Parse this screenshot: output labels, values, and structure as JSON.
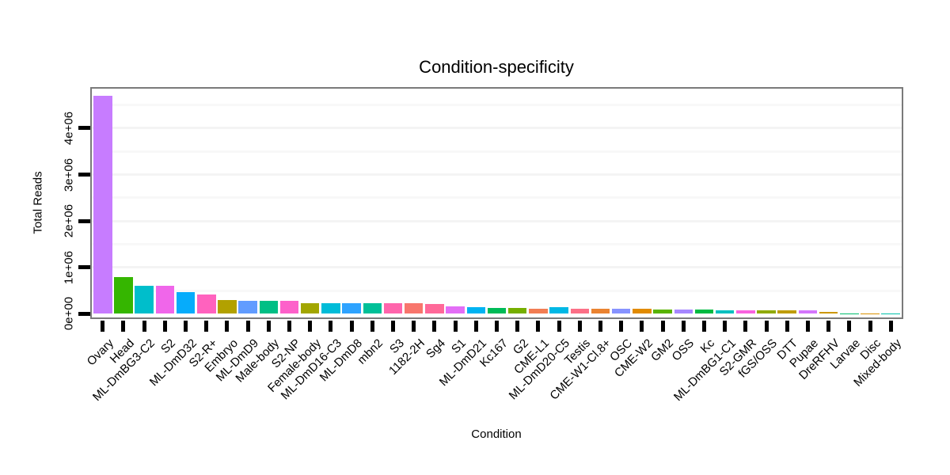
{
  "title": "Condition-specificity",
  "axes": {
    "x_label": "Condition",
    "y_label": "Total Reads"
  },
  "palette": {
    "panel_border": "#7a7a7a",
    "tick_color": "#000000",
    "grid_major": "#f4f4f4",
    "grid_minor": "#f8f8f8",
    "background": "#ffffff"
  },
  "chart_data": {
    "type": "bar",
    "title": "Condition-specificity",
    "xlabel": "Condition",
    "ylabel": "Total Reads",
    "ylim": [
      0,
      4900000
    ],
    "grid": "horizontal major+minor, very light gray, every 500000",
    "legend": "none",
    "y_ticks": [
      {
        "value": 0,
        "label": "0e+00"
      },
      {
        "value": 1000000,
        "label": "1e+06"
      },
      {
        "value": 2000000,
        "label": "2e+06"
      },
      {
        "value": 3000000,
        "label": "3e+06"
      },
      {
        "value": 4000000,
        "label": "4e+06"
      }
    ],
    "categories": [
      "Ovary",
      "Head",
      "ML-DmBG3-C2",
      "S2",
      "ML-DmD32",
      "S2-R+",
      "Embryo",
      "ML-DmD9",
      "Male-body",
      "S2-NP",
      "Female-body",
      "ML-DmD16-C3",
      "ML-DmD8",
      "mbn2",
      "S3",
      "1182-2H",
      "Sg4",
      "S1",
      "ML-DmD21",
      "Kc167",
      "G2",
      "CME-L1",
      "ML-DmD20-C5",
      "Testis",
      "CME-W1-Cl.8+",
      "OSC",
      "CME-W2",
      "GM2",
      "OSS",
      "Kc",
      "ML-DmBG1-C1",
      "S2-GMR",
      "fGS/OSS",
      "DTT",
      "Pupae",
      "DreRFHV",
      "Larvae",
      "Disc",
      "Mixed-body"
    ],
    "values": [
      4690000,
      790000,
      600000,
      610000,
      460000,
      415000,
      300000,
      285000,
      270000,
      285000,
      235000,
      220000,
      220000,
      220000,
      227000,
      235000,
      215000,
      160000,
      140000,
      130000,
      130000,
      115000,
      140000,
      100000,
      105000,
      105000,
      100000,
      95000,
      82000,
      98000,
      65000,
      77000,
      72000,
      65000,
      72000,
      43000,
      8000,
      5000,
      5000
    ],
    "colors": [
      "#C77CFF",
      "#35B600",
      "#00BECB",
      "#F066EA",
      "#06ACFB",
      "#FF62BE",
      "#B2A100",
      "#619CFF",
      "#00BF85",
      "#FD61CA",
      "#A2A600",
      "#00BCD8",
      "#2EA3FF",
      "#00C098",
      "#FF65AC",
      "#F8766D",
      "#FF6999",
      "#E36EF6",
      "#00B3F2",
      "#00BB57",
      "#76AF00",
      "#F27D53",
      "#00B8E5",
      "#FC7087",
      "#EA8331",
      "#8793FF",
      "#E18B00",
      "#59B300",
      "#A687FF",
      "#00BA42",
      "#00C0C0",
      "#F863DF",
      "#90AA00",
      "#BF9C00",
      "#D476FC",
      "#CC9700",
      "#00BD6D",
      "#D89000",
      "#00C1A9"
    ]
  }
}
